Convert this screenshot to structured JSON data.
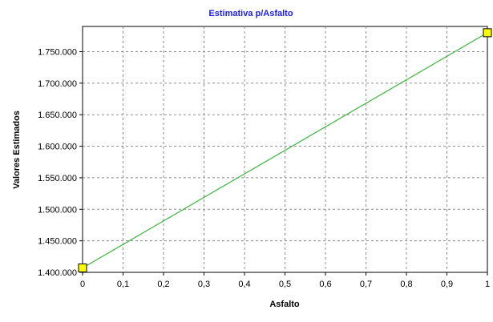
{
  "chart_data": {
    "type": "line",
    "title": "Estimativa p/Asfalto",
    "xlabel": "Asfalto",
    "ylabel": "Valores Estimados",
    "x": [
      0,
      1
    ],
    "series": [
      {
        "values": [
          1407000,
          1780000
        ],
        "color": "#3cb33c",
        "marker_color": "#ffff00"
      }
    ],
    "xlim": [
      0,
      1
    ],
    "ylim": [
      1400000,
      1790000
    ],
    "x_ticks": [
      0,
      0.1,
      0.2,
      0.3,
      0.4,
      0.5,
      0.6,
      0.7,
      0.8,
      0.9,
      1
    ],
    "x_tick_labels": [
      "0",
      "0,1",
      "0,2",
      "0,3",
      "0,4",
      "0,5",
      "0,6",
      "0,7",
      "0,8",
      "0,9",
      "1"
    ],
    "y_ticks": [
      1400000,
      1450000,
      1500000,
      1550000,
      1600000,
      1650000,
      1700000,
      1750000
    ],
    "y_tick_labels": [
      "1.400.000",
      "1.450.000",
      "1.500.000",
      "1.550.000",
      "1.600.000",
      "1.650.000",
      "1.700.000",
      "1.750.000"
    ],
    "grid": true,
    "title_color": "#1a1aff"
  }
}
